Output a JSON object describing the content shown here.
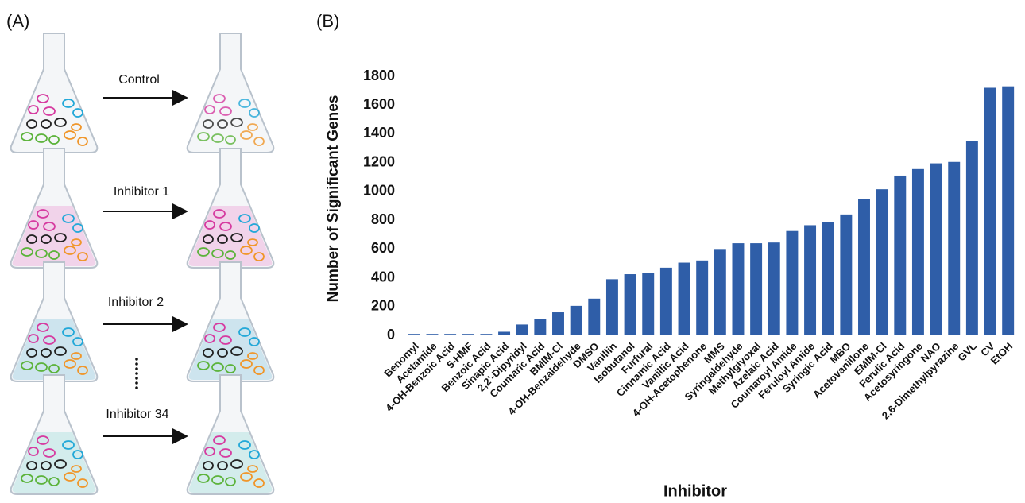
{
  "panel_a": {
    "label": "(A)",
    "arrows": [
      "Control",
      "Inhibitor 1",
      "Inhibitor 2",
      "Inhibitor 34"
    ]
  },
  "panel_b": {
    "label": "(B)"
  },
  "chart_data": {
    "type": "bar",
    "ylabel": "Number of Significant Genes",
    "xlabel": "Inhibitor",
    "categories": [
      "Benomyl",
      "Acetamide",
      "4-OH-Benzoic Acid",
      "5-HMF",
      "Benzoic Acid",
      "Sinapic Acid",
      "2,2'-Dipyridyl",
      "Coumaric Acid",
      "BMIM-Cl",
      "4-OH-Benzaldehyde",
      "DMSO",
      "Vanillin",
      "Isobutanol",
      "Furfural",
      "Cinnamic Acid",
      "Vanillic Acid",
      "4-OH-Acetophenone",
      "MMS",
      "Syringaldehyde",
      "Methylglyoxal",
      "Azelaic Acid",
      "Coumaroyl Amide",
      "Feruloyl Amide",
      "Syringic Acid",
      "MBO",
      "Acetovanillone",
      "EMIM-Cl",
      "Ferulic Acid",
      "Acetosyringone",
      "NAO",
      "2,6-Dimethylpyrazine",
      "GVL",
      "CV",
      "EtOH"
    ],
    "values": [
      10,
      10,
      10,
      10,
      10,
      25,
      75,
      115,
      160,
      205,
      255,
      390,
      425,
      435,
      470,
      505,
      520,
      600,
      640,
      640,
      645,
      725,
      765,
      785,
      840,
      945,
      1015,
      1110,
      1155,
      1195,
      1205,
      1350,
      1720,
      1730
    ],
    "color": "#2f5ea8",
    "ylim": [
      0,
      1800
    ],
    "yticks": [
      0,
      200,
      400,
      600,
      800,
      1000,
      1200,
      1400,
      1600,
      1800
    ],
    "grid": false
  }
}
